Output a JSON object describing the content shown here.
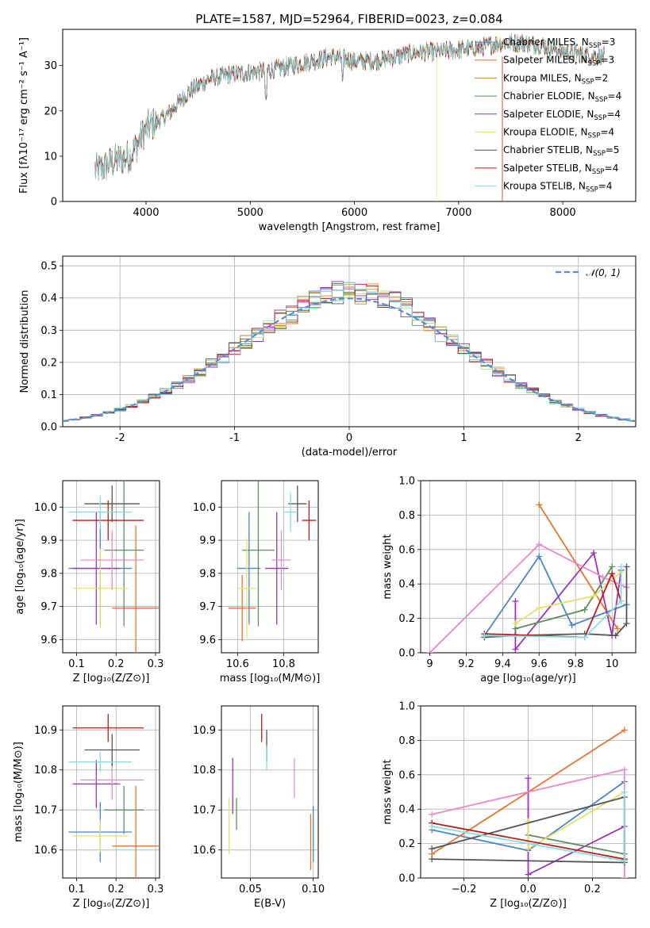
{
  "chart_data": [
    {
      "id": "spectrum",
      "type": "line",
      "title": "PLATE=1587, MJD=52964, FIBERID=0023, z=0.084",
      "xlabel": "wavelength [Angstrom, rest frame]",
      "ylabel": "Flux [fλ10⁻¹⁷ erg cm⁻² s⁻¹ A⁻¹]",
      "xlim": [
        3200,
        8700
      ],
      "ylim": [
        0,
        38
      ],
      "xticks": [
        4000,
        5000,
        6000,
        7000,
        8000
      ],
      "yticks": [
        0,
        10,
        20,
        30
      ],
      "legend_position": "upper right",
      "series": [
        {
          "name": "Chabrier MILES, N",
          "sub": "SSP",
          "suffix": "=3",
          "color": "#4a86c6"
        },
        {
          "name": "Salpeter MILES, N",
          "sub": "SSP",
          "suffix": "=3",
          "color": "#e8742f"
        },
        {
          "name": "Kroupa MILES, N",
          "sub": "SSP",
          "suffix": "=2",
          "color": "#c9891c"
        },
        {
          "name": "Chabrier ELODIE, N",
          "sub": "SSP",
          "suffix": "=4",
          "color": "#5f8f5f"
        },
        {
          "name": "Salpeter ELODIE, N",
          "sub": "SSP",
          "suffix": "=4",
          "color": "#9c35b8"
        },
        {
          "name": "Kroupa ELODIE, N",
          "sub": "SSP",
          "suffix": "=4",
          "color": "#e3e36b"
        },
        {
          "name": "Chabrier STELIB, N",
          "sub": "SSP",
          "suffix": "=5",
          "color": "#555555"
        },
        {
          "name": "Salpeter STELIB, N",
          "sub": "SSP",
          "suffix": "=4",
          "color": "#b81d1d"
        },
        {
          "name": "Kroupa STELIB, N",
          "sub": "SSP",
          "suffix": "=4",
          "color": "#86dede"
        }
      ],
      "approx_shape": {
        "x": [
          3550,
          3700,
          3850,
          4000,
          4200,
          4400,
          4600,
          4800,
          5000,
          5200,
          5400,
          5600,
          5800,
          6000,
          6200,
          6400,
          6600,
          6800,
          7000,
          7200,
          7400,
          7600,
          7800,
          8000,
          8200,
          8400
        ],
        "y": [
          7,
          9,
          10,
          16,
          19,
          24,
          27,
          28,
          28.5,
          29,
          30,
          31,
          32,
          31,
          31,
          32,
          33,
          33,
          33.5,
          34,
          35,
          35,
          34.5,
          33,
          32.5,
          32
        ]
      }
    },
    {
      "id": "residuals",
      "type": "histogram",
      "xlabel": "(data-model)/error",
      "ylabel": "Normed distribution",
      "xlim": [
        -2.5,
        2.5
      ],
      "ylim": [
        0,
        0.53
      ],
      "xticks": [
        -2,
        -1,
        0,
        1,
        2
      ],
      "yticks": [
        0.0,
        0.1,
        0.2,
        0.3,
        0.4,
        0.5
      ],
      "legend": "𝒩(0, 1)",
      "reference_curve": {
        "type": "normal",
        "mean": 0,
        "sigma": 1,
        "color": "#5b8bd6",
        "dashed": true
      },
      "bin_width": 0.1,
      "n_histograms": 9
    },
    {
      "id": "age-vs-z",
      "type": "errorbar",
      "xlabel": "Z [log₁₀(Z/Z⊙)]",
      "ylabel": "age  [log₁₀(age/yr)]",
      "xlim": [
        0.065,
        0.31
      ],
      "ylim": [
        9.56,
        10.08
      ],
      "xticks": [
        0.1,
        0.2,
        0.3
      ],
      "yticks": [
        9.6,
        9.7,
        9.8,
        9.9,
        10.0
      ],
      "points": [
        {
          "x": 0.16,
          "xerr": 0.08,
          "y": 9.815,
          "yerr": 0.17,
          "color": "#4a86c6"
        },
        {
          "x": 0.25,
          "xerr": 0.06,
          "y": 9.695,
          "yerr": 0.25,
          "color": "#e8742f"
        },
        {
          "x": 0.15,
          "xerr": 0.06,
          "y": 9.815,
          "yerr": 0.17,
          "color": "#9c35b8"
        },
        {
          "x": 0.22,
          "xerr": 0.05,
          "y": 9.87,
          "yerr": 0.23,
          "color": "#5f8f5f"
        },
        {
          "x": 0.16,
          "xerr": 0.07,
          "y": 9.755,
          "yerr": 0.12,
          "color": "#e3e36b"
        },
        {
          "x": 0.19,
          "xerr": 0.08,
          "y": 9.84,
          "yerr": 0.09,
          "color": "#e88ac8"
        },
        {
          "x": 0.19,
          "xerr": 0.07,
          "y": 10.01,
          "yerr": 0.055,
          "color": "#555555"
        },
        {
          "x": 0.18,
          "xerr": 0.09,
          "y": 9.96,
          "yerr": 0.06,
          "color": "#b81d1d"
        },
        {
          "x": 0.16,
          "xerr": 0.08,
          "y": 9.985,
          "yerr": 0.05,
          "color": "#86dede"
        }
      ]
    },
    {
      "id": "age-vs-mass",
      "type": "errorbar",
      "xlabel": "mass [log₁₀(M/M⊙)]",
      "ylabel": "",
      "xlim": [
        10.53,
        10.95
      ],
      "ylim": [
        9.56,
        10.08
      ],
      "xticks": [
        10.6,
        10.8
      ],
      "yticks": [
        9.6,
        9.7,
        9.8,
        9.9,
        10.0
      ],
      "points": [
        {
          "x": 10.65,
          "xerr": 0.05,
          "y": 9.815,
          "yerr": 0.17,
          "color": "#4a86c6"
        },
        {
          "x": 10.62,
          "xerr": 0.06,
          "y": 9.695,
          "yerr": 0.1,
          "color": "#e8742f"
        },
        {
          "x": 10.77,
          "xerr": 0.05,
          "y": 9.815,
          "yerr": 0.17,
          "color": "#9c35b8"
        },
        {
          "x": 10.69,
          "xerr": 0.07,
          "y": 9.87,
          "yerr": 0.23,
          "color": "#5f8f5f"
        },
        {
          "x": 10.64,
          "xerr": 0.04,
          "y": 9.755,
          "yerr": 0.15,
          "color": "#e3e36b"
        },
        {
          "x": 10.79,
          "xerr": 0.04,
          "y": 9.84,
          "yerr": 0.09,
          "color": "#e88ac8"
        },
        {
          "x": 10.86,
          "xerr": 0.04,
          "y": 10.01,
          "yerr": 0.055,
          "color": "#555555"
        },
        {
          "x": 10.91,
          "xerr": 0.03,
          "y": 9.96,
          "yerr": 0.06,
          "color": "#b81d1d"
        },
        {
          "x": 10.83,
          "xerr": 0.03,
          "y": 9.985,
          "yerr": 0.06,
          "color": "#86dede"
        }
      ]
    },
    {
      "id": "mass-weight-vs-age",
      "type": "line",
      "xlabel": "age  [log₁₀(age/yr)]",
      "ylabel": "mass weight",
      "xlim": [
        8.95,
        10.13
      ],
      "ylim": [
        0.0,
        1.0
      ],
      "xticks": [
        9.0,
        9.2,
        9.4,
        9.6,
        9.8,
        10.0
      ],
      "yticks": [
        0.0,
        0.2,
        0.4,
        0.6,
        0.8,
        1.0
      ],
      "series": [
        {
          "name": "Chabrier MILES",
          "color": "#4a86c6",
          "x": [
            9.3,
            9.6,
            9.78,
            10.08
          ],
          "y": [
            0.1,
            0.56,
            0.16,
            0.28
          ]
        },
        {
          "name": "Salpeter MILES",
          "color": "#e8742f",
          "x": [
            9.6,
            10.03
          ],
          "y": [
            0.86,
            0.14
          ]
        },
        {
          "name": "Salpeter ELODIE",
          "color": "#9c35b8",
          "x": [
            9.47,
            9.47,
            9.9,
            10.0,
            10.05
          ],
          "y": [
            0.3,
            0.02,
            0.58,
            0.1,
            0.48
          ]
        },
        {
          "name": "Chabrier ELODIE",
          "color": "#5f8f5f",
          "x": [
            9.47,
            9.85,
            10.0
          ],
          "y": [
            0.14,
            0.25,
            0.5
          ]
        },
        {
          "name": "Kroupa ELODIE",
          "color": "#e3e36b",
          "x": [
            9.47,
            9.6,
            9.9,
            10.05
          ],
          "y": [
            0.17,
            0.26,
            0.33,
            0.47
          ]
        },
        {
          "name": "Kroupa MILES",
          "color": "#e88ac8",
          "x": [
            9.0,
            9.6,
            9.95,
            10.08
          ],
          "y": [
            0.0,
            0.63,
            0.44,
            0.38
          ]
        },
        {
          "name": "Chabrier STELIB",
          "color": "#555555",
          "x": [
            9.3,
            9.47,
            9.85,
            10.02,
            10.08,
            10.08
          ],
          "y": [
            0.09,
            0.1,
            0.11,
            0.1,
            0.17,
            0.5
          ]
        },
        {
          "name": "Salpeter STELIB",
          "color": "#b81d1d",
          "x": [
            9.3,
            9.85,
            10.0,
            10.05
          ],
          "y": [
            0.11,
            0.09,
            0.46,
            0.3
          ]
        },
        {
          "name": "Kroupa STELIB",
          "color": "#86dede",
          "x": [
            9.3,
            9.85,
            10.05,
            10.05
          ],
          "y": [
            0.1,
            0.09,
            0.3,
            0.5
          ]
        }
      ]
    },
    {
      "id": "mass-vs-z",
      "type": "errorbar",
      "xlabel": "Z [log₁₀(Z/Z⊙)]",
      "ylabel": "mass [log₁₀(M/M⊙)]",
      "xlim": [
        0.065,
        0.31
      ],
      "ylim": [
        10.53,
        10.96
      ],
      "xticks": [
        0.1,
        0.2,
        0.3
      ],
      "yticks": [
        10.6,
        10.7,
        10.8,
        10.9
      ],
      "points": [
        {
          "x": 0.16,
          "xerr": 0.08,
          "y": 10.645,
          "yerr": 0.075,
          "color": "#4a86c6"
        },
        {
          "x": 0.25,
          "xerr": 0.06,
          "y": 10.61,
          "yerr": 0.15,
          "color": "#e8742f"
        },
        {
          "x": 0.15,
          "xerr": 0.06,
          "y": 10.765,
          "yerr": 0.06,
          "color": "#9c35b8"
        },
        {
          "x": 0.22,
          "xerr": 0.05,
          "y": 10.7,
          "yerr": 0.06,
          "color": "#5f8f5f"
        },
        {
          "x": 0.16,
          "xerr": 0.07,
          "y": 10.635,
          "yerr": 0.04,
          "color": "#e3e36b"
        },
        {
          "x": 0.19,
          "xerr": 0.08,
          "y": 10.775,
          "yerr": 0.05,
          "color": "#e88ac8"
        },
        {
          "x": 0.19,
          "xerr": 0.07,
          "y": 10.85,
          "yerr": 0.04,
          "color": "#555555"
        },
        {
          "x": 0.18,
          "xerr": 0.09,
          "y": 10.905,
          "yerr": 0.035,
          "color": "#b81d1d"
        },
        {
          "x": 0.16,
          "xerr": 0.08,
          "y": 10.82,
          "yerr": 0.025,
          "color": "#86dede"
        }
      ]
    },
    {
      "id": "mass-vs-ebv",
      "type": "errorbar",
      "xlabel": "E(B-V)",
      "ylabel": "",
      "xlim": [
        0.027,
        0.104
      ],
      "ylim": [
        10.53,
        10.96
      ],
      "xticks": [
        0.05,
        0.1
      ],
      "xtick_labels": [
        "0.05",
        "0.10"
      ],
      "yticks": [
        10.6,
        10.7,
        10.8,
        10.9
      ],
      "points": [
        {
          "x": 0.1,
          "xerr": 0,
          "y": 10.64,
          "yerr": 0.07,
          "color": "#4a86c6"
        },
        {
          "x": 0.098,
          "xerr": 0,
          "y": 10.62,
          "yerr": 0.07,
          "color": "#e8742f"
        },
        {
          "x": 0.036,
          "xerr": 0,
          "y": 10.76,
          "yerr": 0.07,
          "color": "#9c35b8"
        },
        {
          "x": 0.039,
          "xerr": 0,
          "y": 10.69,
          "yerr": 0.04,
          "color": "#5f8f5f"
        },
        {
          "x": 0.033,
          "xerr": 0,
          "y": 10.66,
          "yerr": 0.07,
          "color": "#e3e36b"
        },
        {
          "x": 0.085,
          "xerr": 0,
          "y": 10.78,
          "yerr": 0.05,
          "color": "#e88ac8"
        },
        {
          "x": 0.063,
          "xerr": 0,
          "y": 10.86,
          "yerr": 0.04,
          "color": "#555555"
        },
        {
          "x": 0.059,
          "xerr": 0,
          "y": 10.905,
          "yerr": 0.035,
          "color": "#b81d1d"
        },
        {
          "x": 0.063,
          "xerr": 0,
          "y": 10.83,
          "yerr": 0.03,
          "color": "#86dede"
        }
      ]
    },
    {
      "id": "mass-weight-vs-z",
      "type": "line",
      "xlabel": "Z [log₁₀(Z/Z⊙)]",
      "ylabel": "mass weight",
      "xlim": [
        -0.335,
        0.335
      ],
      "ylim": [
        0.0,
        1.0
      ],
      "xticks": [
        -0.2,
        0.0,
        0.2
      ],
      "xtick_labels": [
        "−0.2",
        "0.0",
        "0.2"
      ],
      "yticks": [
        0.0,
        0.2,
        0.4,
        0.6,
        0.8,
        1.0
      ],
      "series": [
        {
          "name": "Chabrier MILES",
          "color": "#4a86c6",
          "x": [
            -0.3,
            0.0,
            0.3
          ],
          "y": [
            0.28,
            0.16,
            0.56
          ]
        },
        {
          "name": "Salpeter MILES",
          "color": "#e8742f",
          "x": [
            -0.3,
            0.3
          ],
          "y": [
            0.14,
            0.86
          ]
        },
        {
          "name": "Salpeter ELODIE",
          "color": "#9c35b8",
          "x": [
            0.0,
            0.0,
            0.3,
            0.3
          ],
          "y": [
            0.58,
            0.02,
            0.3,
            0.1
          ]
        },
        {
          "name": "Chabrier ELODIE",
          "color": "#5f8f5f",
          "x": [
            0.0,
            0.3
          ],
          "y": [
            0.25,
            0.14
          ]
        },
        {
          "name": "Kroupa ELODIE",
          "color": "#e3e36b",
          "x": [
            0.0,
            0.0,
            0.3
          ],
          "y": [
            0.33,
            0.17,
            0.5
          ]
        },
        {
          "name": "Kroupa MILES",
          "color": "#e88ac8",
          "x": [
            -0.3,
            0.3,
            0.3
          ],
          "y": [
            0.37,
            0.63,
            0.0
          ]
        },
        {
          "name": "Chabrier STELIB",
          "color": "#555555",
          "x": [
            -0.3,
            0.3,
            0.3,
            -0.3
          ],
          "y": [
            0.11,
            0.09,
            0.47,
            0.17
          ]
        },
        {
          "name": "Salpeter STELIB",
          "color": "#b81d1d",
          "x": [
            -0.3,
            0.3
          ],
          "y": [
            0.32,
            0.11
          ]
        },
        {
          "name": "Kroupa STELIB",
          "color": "#86dede",
          "x": [
            -0.3,
            0.3,
            0.3
          ],
          "y": [
            0.3,
            0.1,
            0.5
          ]
        }
      ]
    }
  ]
}
